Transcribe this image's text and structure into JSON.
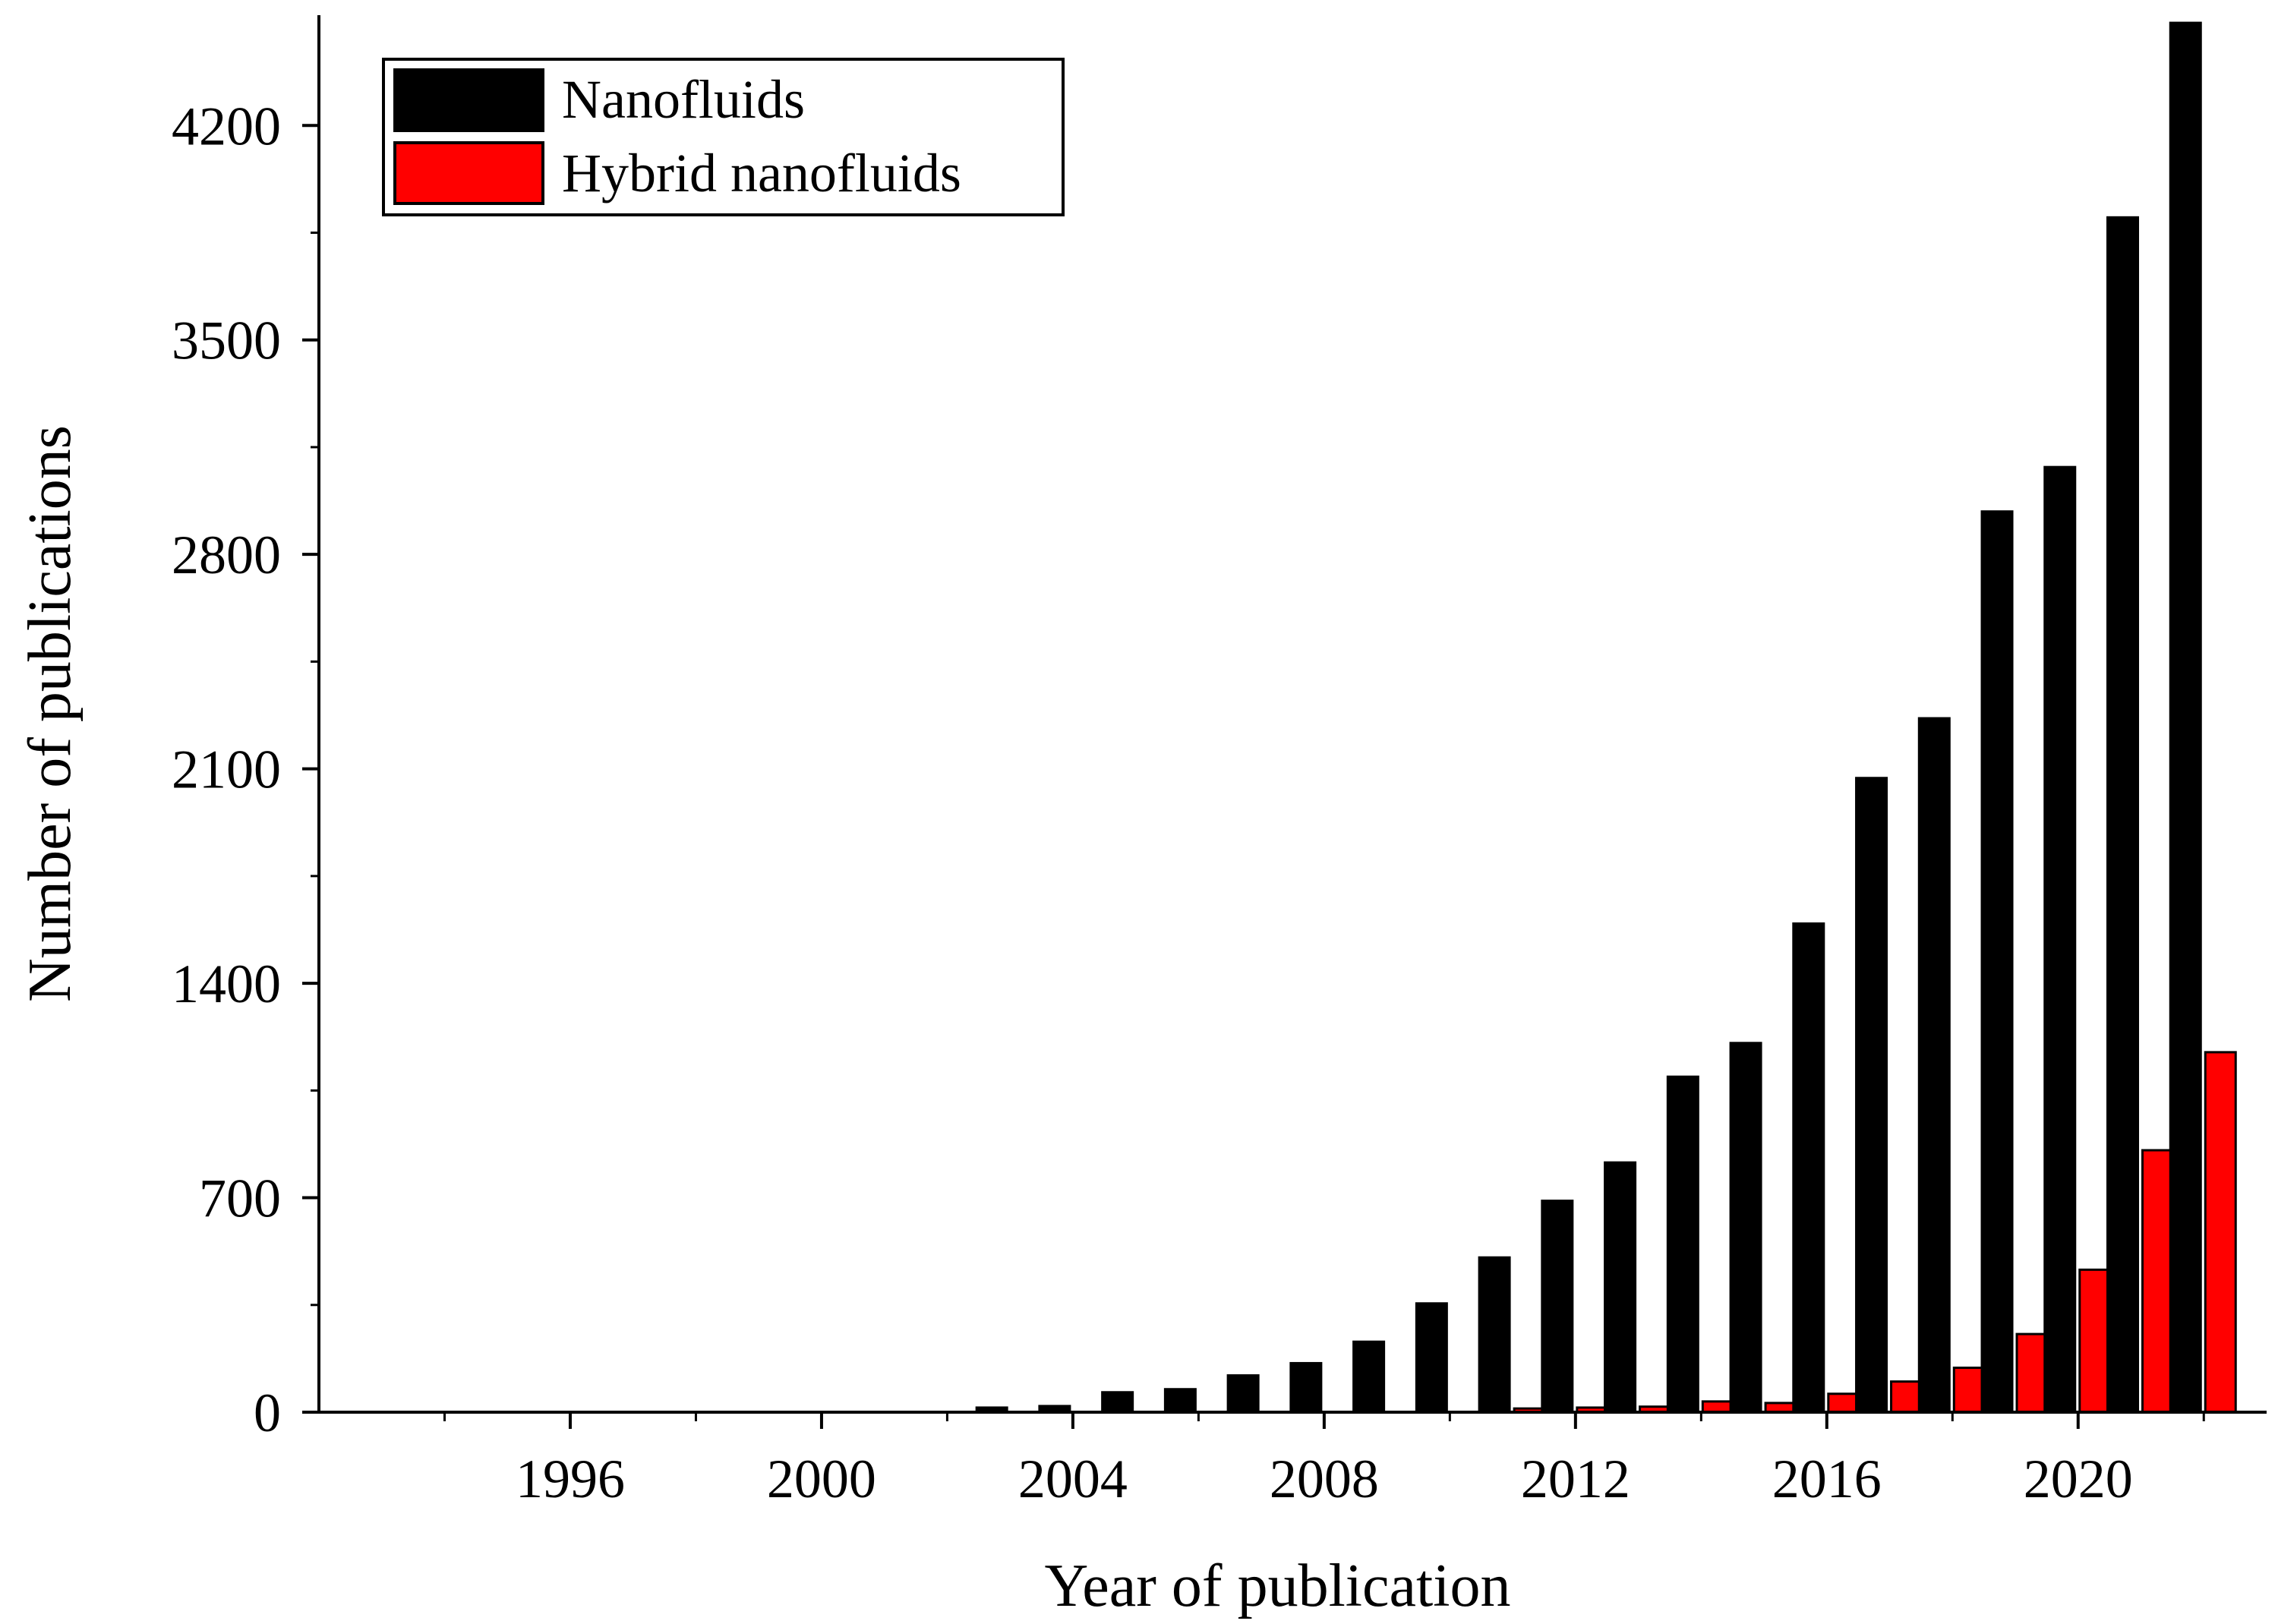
{
  "chart_data": {
    "type": "bar",
    "title": "",
    "xlabel": "Year of publication",
    "ylabel": "Number of publications",
    "ylim": [
      0,
      4560
    ],
    "yticks": [
      0,
      700,
      1400,
      2100,
      2800,
      3500,
      4200
    ],
    "xlim": [
      1992,
      2023
    ],
    "xticks": [
      1996,
      2000,
      2004,
      2008,
      2012,
      2016,
      2020
    ],
    "categories": [
      2003,
      2004,
      2005,
      2006,
      2007,
      2008,
      2009,
      2010,
      2011,
      2012,
      2013,
      2014,
      2015,
      2016,
      2017,
      2018,
      2019,
      2020,
      2021,
      2022
    ],
    "series": [
      {
        "name": "Nanofluids",
        "color": "#000000",
        "values": [
          15,
          20,
          65,
          75,
          120,
          160,
          230,
          355,
          505,
          690,
          815,
          1095,
          1205,
          1595,
          2070,
          2265,
          2940,
          3085,
          3900,
          4535
        ]
      },
      {
        "name": "Hybrid nanofluids",
        "color": "#ff0000",
        "values": [
          0,
          0,
          0,
          0,
          0,
          0,
          0,
          0,
          12,
          15,
          18,
          35,
          30,
          60,
          100,
          145,
          255,
          465,
          855,
          1175
        ]
      }
    ],
    "legend": {
      "position": "top-left"
    },
    "grid": false
  }
}
